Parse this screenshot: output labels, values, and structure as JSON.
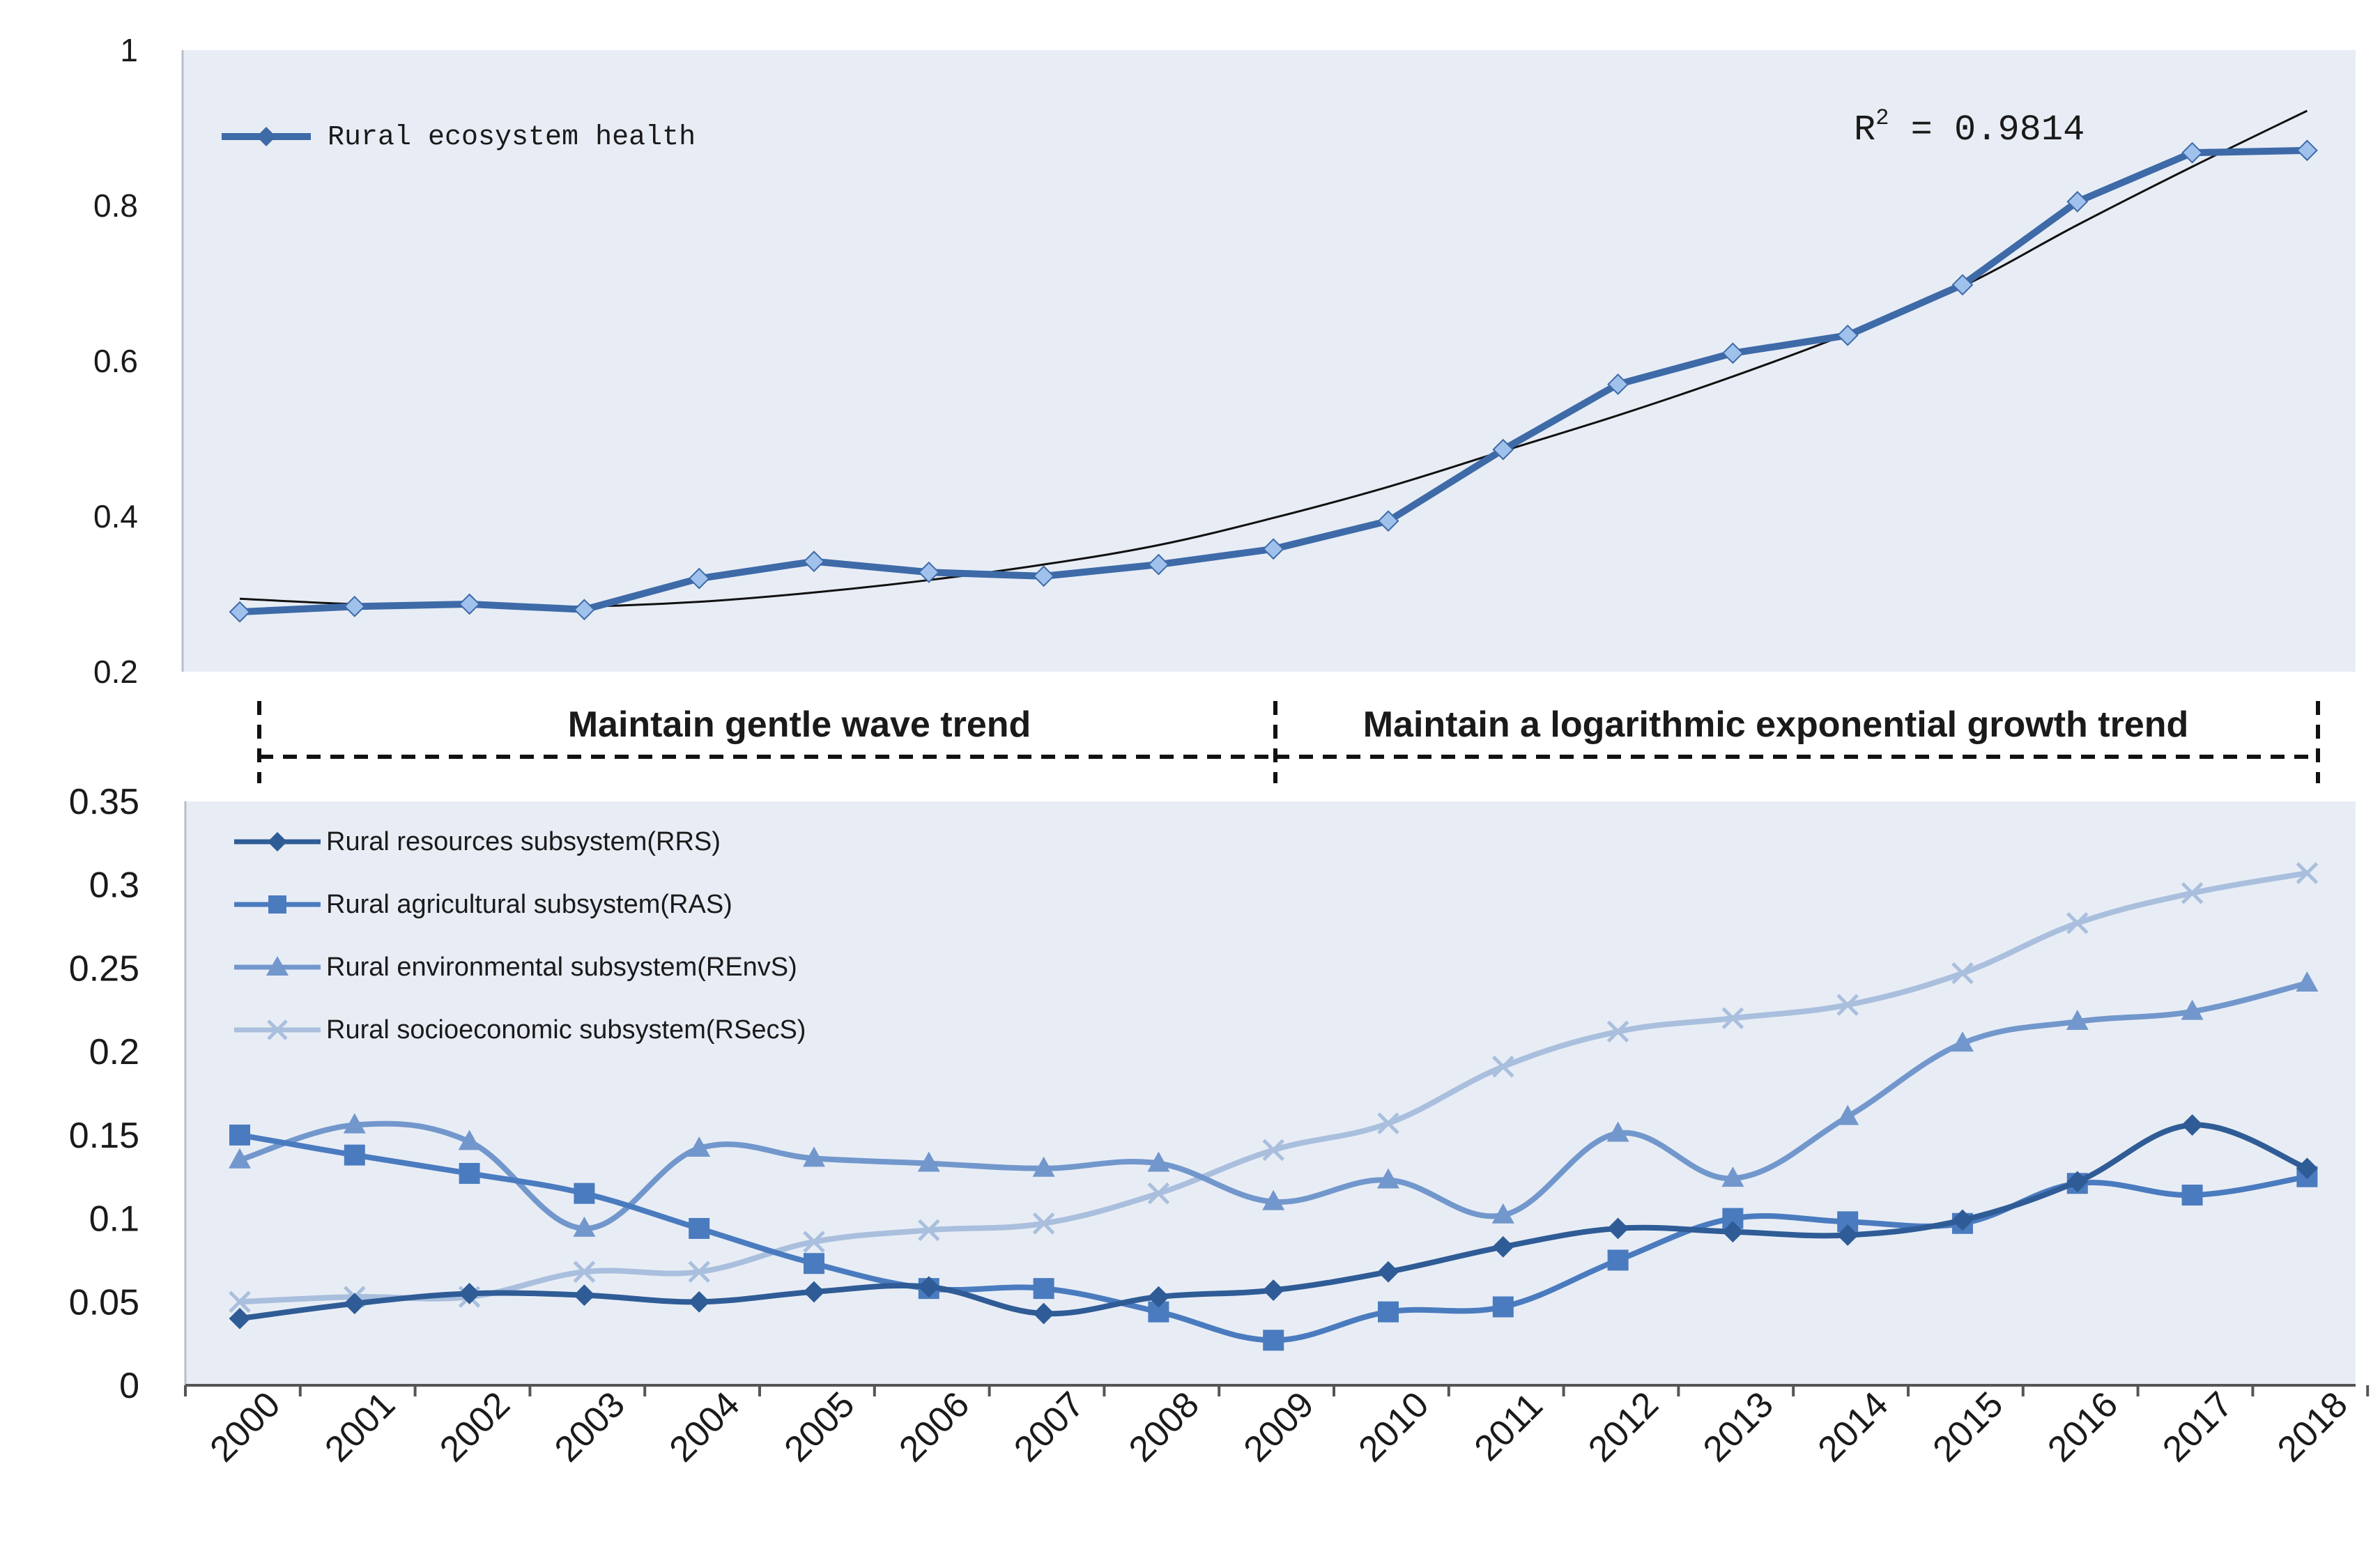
{
  "chart_data": [
    {
      "type": "line",
      "categories": [
        "2000",
        "2001",
        "2002",
        "2003",
        "2004",
        "2005",
        "2006",
        "2007",
        "2008",
        "2009",
        "2010",
        "2011",
        "2012",
        "2013",
        "2014",
        "2015",
        "2016",
        "2017",
        "2018"
      ],
      "series": [
        {
          "name": "Rural ecosystem health",
          "color": "#3e6aa8",
          "marker_fill": "#9fc1ec",
          "marker": "diamond",
          "values": [
            0.277,
            0.284,
            0.287,
            0.28,
            0.32,
            0.342,
            0.328,
            0.323,
            0.338,
            0.358,
            0.394,
            0.486,
            0.57,
            0.61,
            0.633,
            0.698,
            0.805,
            0.868,
            0.871
          ]
        },
        {
          "name": "trendline",
          "color": "#111111",
          "values": [
            0.294,
            0.287,
            0.284,
            0.284,
            0.29,
            0.302,
            0.318,
            0.338,
            0.363,
            0.398,
            0.438,
            0.484,
            0.53,
            0.58,
            0.635,
            0.696,
            0.775,
            0.85,
            0.922
          ]
        }
      ],
      "annotation": "R² = 0.9814",
      "ylim": [
        0.2,
        1.0
      ],
      "yticks": [
        "0.2",
        "0.4",
        "0.6",
        "0.8",
        "1"
      ]
    },
    {
      "type": "line",
      "categories": [
        "2000",
        "2001",
        "2002",
        "2003",
        "2004",
        "2005",
        "2006",
        "2007",
        "2008",
        "2009",
        "2010",
        "2011",
        "2012",
        "2013",
        "2014",
        "2015",
        "2016",
        "2017",
        "2018"
      ],
      "series": [
        {
          "name": "Rural resources subsystem(RRS)",
          "color": "#2f5c96",
          "marker": "diamond",
          "values": [
            0.04,
            0.049,
            0.055,
            0.054,
            0.05,
            0.056,
            0.059,
            0.043,
            0.053,
            0.057,
            0.068,
            0.083,
            0.094,
            0.092,
            0.09,
            0.099,
            0.122,
            0.156,
            0.13
          ]
        },
        {
          "name": "Rural agricultural subsystem(RAS)",
          "color": "#4a7bbf",
          "marker": "square",
          "values": [
            0.15,
            0.138,
            0.127,
            0.115,
            0.094,
            0.073,
            0.058,
            0.058,
            0.044,
            0.027,
            0.044,
            0.047,
            0.075,
            0.1,
            0.098,
            0.097,
            0.121,
            0.114,
            0.125
          ]
        },
        {
          "name": "Rural environmental subsystem(REnvS)",
          "color": "#7297cc",
          "marker": "triangle",
          "values": [
            0.135,
            0.156,
            0.146,
            0.094,
            0.142,
            0.136,
            0.133,
            0.13,
            0.133,
            0.11,
            0.123,
            0.102,
            0.151,
            0.124,
            0.161,
            0.205,
            0.218,
            0.224,
            0.241
          ]
        },
        {
          "name": "Rural socioeconomic subsystem(RSecS)",
          "color": "#a9bfdd",
          "marker": "x",
          "values": [
            0.05,
            0.053,
            0.053,
            0.068,
            0.068,
            0.086,
            0.093,
            0.097,
            0.115,
            0.141,
            0.157,
            0.191,
            0.212,
            0.22,
            0.228,
            0.247,
            0.277,
            0.295,
            0.307
          ]
        }
      ],
      "ylim": [
        0,
        0.35
      ],
      "yticks": [
        "0",
        "0.05",
        "0.1",
        "0.15",
        "0.2",
        "0.25",
        "0.3",
        "0.35"
      ]
    }
  ],
  "trend_labels": {
    "left": "Maintain gentle wave trend",
    "right": "Maintain a logarithmic exponential growth trend"
  },
  "top_legend": "Rural ecosystem health",
  "r_squared_prefix": "R",
  "r_squared_sup": "2",
  "r_squared_value": " = 0.9814",
  "bottom_legend": [
    "Rural resources subsystem(RRS)",
    "Rural agricultural subsystem(RAS)",
    "Rural environmental subsystem(REnvS)",
    "Rural socioeconomic subsystem(RSecS)"
  ],
  "colors": {
    "plot_bg": "#e8edf5"
  }
}
